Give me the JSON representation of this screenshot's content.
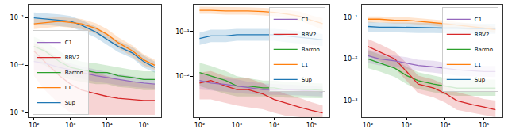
{
  "chart_data": [
    {
      "type": "line",
      "log": true,
      "grid": false,
      "legend": "lower left",
      "x": [
        100,
        200,
        500,
        1000,
        2000,
        5000,
        10000,
        20000,
        50000,
        100000,
        200000
      ],
      "xlim": [
        70,
        300000
      ],
      "xticks": [
        {
          "value": 100,
          "label": "10²"
        },
        {
          "value": 1000,
          "label": "10³"
        },
        {
          "value": 10000,
          "label": "10⁴"
        },
        {
          "value": 100000,
          "label": "10⁵"
        }
      ],
      "ylim": [
        0.0008,
        0.19
      ],
      "yticks": [
        {
          "value": 0.001,
          "label": "10⁻³"
        },
        {
          "value": 0.01,
          "label": "10⁻²"
        },
        {
          "value": 0.1,
          "label": "10⁻¹"
        }
      ],
      "series": [
        {
          "name": "Sup",
          "color": "#1f77b4",
          "values": [
            0.1,
            0.095,
            0.09,
            0.085,
            0.07,
            0.05,
            0.035,
            0.025,
            0.018,
            0.012,
            0.009
          ],
          "lower": [
            0.075,
            0.072,
            0.068,
            0.064,
            0.053,
            0.038,
            0.027,
            0.019,
            0.014,
            0.009,
            0.007
          ],
          "upper": [
            0.13,
            0.125,
            0.118,
            0.11,
            0.09,
            0.065,
            0.045,
            0.033,
            0.024,
            0.016,
            0.012
          ]
        },
        {
          "name": "L1",
          "color": "#ff7f0e",
          "values": [
            0.075,
            0.08,
            0.085,
            0.08,
            0.075,
            0.06,
            0.045,
            0.03,
            0.02,
            0.013,
            0.01
          ],
          "lower": [
            0.058,
            0.062,
            0.066,
            0.062,
            0.058,
            0.046,
            0.035,
            0.023,
            0.015,
            0.01,
            0.008
          ],
          "upper": [
            0.095,
            0.1,
            0.105,
            0.1,
            0.095,
            0.077,
            0.058,
            0.039,
            0.026,
            0.017,
            0.013
          ]
        },
        {
          "name": "Barron",
          "color": "#2ca02c",
          "values": [
            0.025,
            0.02,
            0.012,
            0.009,
            0.008,
            0.007,
            0.007,
            0.006,
            0.0055,
            0.005,
            0.005
          ],
          "lower": [
            0.012,
            0.01,
            0.006,
            0.005,
            0.0045,
            0.004,
            0.004,
            0.0035,
            0.0033,
            0.003,
            0.003
          ],
          "upper": [
            0.04,
            0.032,
            0.02,
            0.014,
            0.012,
            0.011,
            0.01,
            0.009,
            0.008,
            0.0075,
            0.0075
          ]
        },
        {
          "name": "RBV2",
          "color": "#d62728",
          "values": [
            0.02,
            0.012,
            0.006,
            0.004,
            0.003,
            0.0025,
            0.0022,
            0.002,
            0.0019,
            0.0018,
            0.0018
          ],
          "lower": [
            0.006,
            0.003,
            0.0015,
            0.001,
            0.0009,
            0.0009,
            0.0009,
            0.0009,
            0.0009,
            0.0009,
            0.0009
          ],
          "upper": [
            0.03,
            0.022,
            0.014,
            0.01,
            0.008,
            0.007,
            0.006,
            0.005,
            0.0045,
            0.004,
            0.004
          ]
        },
        {
          "name": "C1",
          "color": "#9467bd",
          "values": [
            0.012,
            0.011,
            0.009,
            0.008,
            0.007,
            0.006,
            0.0055,
            0.005,
            0.0045,
            0.0042,
            0.004
          ],
          "lower": [
            0.008,
            0.0075,
            0.0065,
            0.006,
            0.0052,
            0.0045,
            0.0042,
            0.0038,
            0.0035,
            0.0033,
            0.0032
          ],
          "upper": [
            0.017,
            0.015,
            0.012,
            0.011,
            0.0095,
            0.008,
            0.0072,
            0.0065,
            0.0058,
            0.0054,
            0.0052
          ]
        }
      ]
    },
    {
      "type": "line",
      "log": true,
      "grid": false,
      "legend": "upper right",
      "x": [
        100,
        200,
        500,
        1000,
        2000,
        5000,
        10000,
        20000,
        50000,
        100000,
        200000
      ],
      "xlim": [
        70,
        300000
      ],
      "xticks": [
        {
          "value": 100,
          "label": "10²"
        },
        {
          "value": 1000,
          "label": "10³"
        },
        {
          "value": 10000,
          "label": "10⁴"
        },
        {
          "value": 100000,
          "label": "10⁵"
        }
      ],
      "ylim": [
        0.0012,
        0.4
      ],
      "yticks": [
        {
          "value": 0.01,
          "label": "10⁻²"
        },
        {
          "value": 0.1,
          "label": "10⁻¹"
        }
      ],
      "series": [
        {
          "name": "Sup",
          "color": "#1f77b4",
          "values": [
            0.07,
            0.08,
            0.08,
            0.085,
            0.085,
            0.085,
            0.085,
            0.08,
            0.075,
            0.07,
            0.065
          ],
          "lower": [
            0.05,
            0.058,
            0.058,
            0.062,
            0.062,
            0.062,
            0.062,
            0.058,
            0.054,
            0.05,
            0.047
          ],
          "upper": [
            0.095,
            0.11,
            0.11,
            0.115,
            0.115,
            0.115,
            0.115,
            0.11,
            0.1,
            0.095,
            0.088
          ]
        },
        {
          "name": "L1",
          "color": "#ff7f0e",
          "values": [
            0.3,
            0.3,
            0.29,
            0.29,
            0.29,
            0.28,
            0.27,
            0.25,
            0.22,
            0.18,
            0.15
          ],
          "lower": [
            0.25,
            0.25,
            0.24,
            0.24,
            0.24,
            0.23,
            0.22,
            0.2,
            0.175,
            0.14,
            0.11
          ],
          "upper": [
            0.36,
            0.36,
            0.35,
            0.35,
            0.35,
            0.34,
            0.33,
            0.31,
            0.28,
            0.23,
            0.2
          ]
        },
        {
          "name": "Barron",
          "color": "#2ca02c",
          "values": [
            0.012,
            0.01,
            0.008,
            0.006,
            0.006,
            0.0055,
            0.0055,
            0.005,
            0.005,
            0.005,
            0.0048
          ],
          "lower": [
            0.006,
            0.005,
            0.004,
            0.0035,
            0.0035,
            0.0035,
            0.0035,
            0.0033,
            0.0033,
            0.0033,
            0.0032
          ],
          "upper": [
            0.02,
            0.017,
            0.013,
            0.01,
            0.009,
            0.008,
            0.008,
            0.0075,
            0.0072,
            0.007,
            0.0068
          ]
        },
        {
          "name": "RBV2",
          "color": "#d62728",
          "values": [
            0.007,
            0.008,
            0.006,
            0.005,
            0.005,
            0.004,
            0.003,
            0.0025,
            0.002,
            0.0017,
            0.0015
          ],
          "lower": [
            0.003,
            0.003,
            0.0025,
            0.0022,
            0.002,
            0.0018,
            0.0015,
            0.0013,
            0.0012,
            0.0012,
            0.0012
          ],
          "upper": [
            0.012,
            0.013,
            0.01,
            0.009,
            0.009,
            0.007,
            0.005,
            0.004,
            0.0032,
            0.0026,
            0.0022
          ]
        },
        {
          "name": "C1",
          "color": "#9467bd",
          "values": [
            0.008,
            0.007,
            0.0065,
            0.006,
            0.0055,
            0.005,
            0.005,
            0.005,
            0.0048,
            0.0046,
            0.0045
          ],
          "lower": [
            0.005,
            0.0048,
            0.0045,
            0.0042,
            0.004,
            0.0038,
            0.0038,
            0.0038,
            0.0037,
            0.0036,
            0.0035
          ],
          "upper": [
            0.012,
            0.01,
            0.009,
            0.0085,
            0.0075,
            0.0068,
            0.0067,
            0.0066,
            0.0063,
            0.006,
            0.0058
          ]
        }
      ]
    },
    {
      "type": "line",
      "log": true,
      "grid": false,
      "legend": "upper right",
      "x": [
        100,
        200,
        500,
        1000,
        2000,
        5000,
        10000,
        20000,
        50000,
        100000,
        200000
      ],
      "xlim": [
        70,
        300000
      ],
      "xticks": [
        {
          "value": 100,
          "label": "10²"
        },
        {
          "value": 1000,
          "label": "10³"
        },
        {
          "value": 10000,
          "label": "10⁴"
        },
        {
          "value": 100000,
          "label": "10⁵"
        }
      ],
      "ylim": [
        0.0004,
        0.2
      ],
      "yticks": [
        {
          "value": 0.001,
          "label": "10⁻³"
        },
        {
          "value": 0.01,
          "label": "10⁻²"
        },
        {
          "value": 0.1,
          "label": "10⁻¹"
        }
      ],
      "series": [
        {
          "name": "Sup",
          "color": "#1f77b4",
          "values": [
            0.06,
            0.058,
            0.058,
            0.057,
            0.056,
            0.056,
            0.055,
            0.055,
            0.054,
            0.054,
            0.053
          ],
          "lower": [
            0.045,
            0.044,
            0.044,
            0.043,
            0.042,
            0.042,
            0.041,
            0.041,
            0.04,
            0.04,
            0.04
          ],
          "upper": [
            0.078,
            0.075,
            0.075,
            0.074,
            0.073,
            0.073,
            0.072,
            0.072,
            0.071,
            0.071,
            0.07
          ]
        },
        {
          "name": "L1",
          "color": "#ff7f0e",
          "values": [
            0.09,
            0.09,
            0.085,
            0.085,
            0.08,
            0.075,
            0.07,
            0.065,
            0.06,
            0.055,
            0.05
          ],
          "lower": [
            0.075,
            0.075,
            0.071,
            0.071,
            0.067,
            0.063,
            0.058,
            0.054,
            0.05,
            0.046,
            0.042
          ],
          "upper": [
            0.105,
            0.105,
            0.1,
            0.1,
            0.095,
            0.089,
            0.083,
            0.077,
            0.071,
            0.065,
            0.059
          ]
        },
        {
          "name": "Barron",
          "color": "#2ca02c",
          "values": [
            0.01,
            0.008,
            0.006,
            0.004,
            0.003,
            0.0025,
            0.0022,
            0.002,
            0.002,
            0.002,
            0.002
          ],
          "lower": [
            0.006,
            0.005,
            0.0037,
            0.0025,
            0.0019,
            0.0016,
            0.0014,
            0.0013,
            0.0013,
            0.0013,
            0.0013
          ],
          "upper": [
            0.016,
            0.013,
            0.0095,
            0.0065,
            0.0048,
            0.004,
            0.0035,
            0.0032,
            0.0032,
            0.0032,
            0.0032
          ]
        },
        {
          "name": "RBV2",
          "color": "#d62728",
          "values": [
            0.02,
            0.015,
            0.01,
            0.005,
            0.0025,
            0.002,
            0.0015,
            0.001,
            0.0008,
            0.0007,
            0.0006
          ],
          "lower": [
            0.012,
            0.009,
            0.006,
            0.003,
            0.0015,
            0.0012,
            0.0009,
            0.0006,
            0.0005,
            0.00045,
            0.0004
          ],
          "upper": [
            0.03,
            0.023,
            0.015,
            0.008,
            0.004,
            0.0032,
            0.0024,
            0.0016,
            0.0013,
            0.0011,
            0.001
          ]
        },
        {
          "name": "C1",
          "color": "#9467bd",
          "values": [
            0.012,
            0.01,
            0.009,
            0.008,
            0.007,
            0.0065,
            0.006,
            0.0055,
            0.0052,
            0.005,
            0.005
          ],
          "lower": [
            0.008,
            0.007,
            0.0065,
            0.0058,
            0.0051,
            0.0047,
            0.0044,
            0.004,
            0.0038,
            0.0037,
            0.0037
          ],
          "upper": [
            0.017,
            0.014,
            0.012,
            0.011,
            0.0095,
            0.009,
            0.0082,
            0.0075,
            0.0071,
            0.0068,
            0.0068
          ]
        }
      ]
    }
  ]
}
